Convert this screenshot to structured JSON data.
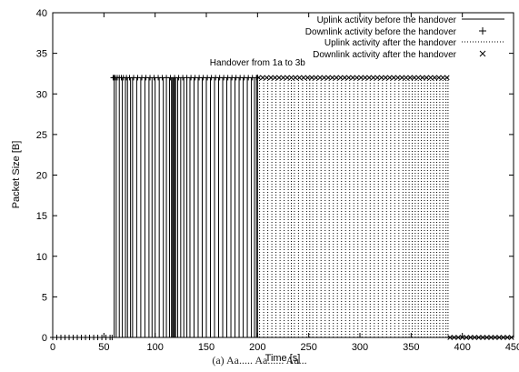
{
  "chart_data": {
    "type": "line",
    "title": "",
    "xlabel": "Time [s]",
    "ylabel": "Packet Size [B]",
    "xlim": [
      0,
      450
    ],
    "ylim": [
      0,
      40
    ],
    "x_ticks": [
      0,
      50,
      100,
      150,
      200,
      250,
      300,
      350,
      400,
      450
    ],
    "y_ticks": [
      0,
      5,
      10,
      15,
      20,
      25,
      30,
      35,
      40
    ],
    "grid": false,
    "legend_position": "top-right",
    "annotation": {
      "text": "Handover from 1a to 3b",
      "x": 200
    },
    "series": [
      {
        "name": "Uplink activity before the handover",
        "style": "solid",
        "x": [
          60,
          62,
          65,
          68,
          71,
          73,
          76,
          78,
          82,
          86,
          90,
          94,
          97,
          100,
          104,
          108,
          111,
          114,
          116,
          117,
          118,
          119,
          120,
          122,
          125,
          128,
          131,
          134,
          138,
          142,
          146,
          150,
          154,
          158,
          162,
          166,
          170,
          174,
          178,
          182,
          186,
          190,
          194,
          197,
          199
        ],
        "y": [
          32,
          32,
          32,
          32,
          32,
          32,
          32,
          32,
          32,
          32,
          32,
          32,
          32,
          32,
          32,
          32,
          32,
          32,
          32,
          32,
          32,
          32,
          32,
          32,
          32,
          32,
          32,
          32,
          32,
          32,
          32,
          32,
          32,
          32,
          32,
          32,
          32,
          32,
          32,
          32,
          32,
          32,
          32,
          32,
          32
        ]
      },
      {
        "name": "Downlink activity before the handover",
        "style": "plus",
        "x": [
          0,
          4,
          8,
          12,
          16,
          20,
          24,
          28,
          32,
          36,
          40,
          44,
          48,
          52,
          56,
          58,
          59,
          60,
          61,
          63,
          65,
          67,
          69,
          72,
          75,
          79,
          83,
          87,
          91,
          95,
          99,
          103,
          107,
          111,
          115,
          119,
          123,
          127,
          131,
          135,
          139,
          143,
          147,
          151,
          155,
          159,
          163,
          167,
          171,
          175,
          179,
          183,
          187,
          191,
          195,
          199
        ],
        "y": [
          0,
          0,
          0,
          0,
          0,
          0,
          0,
          0,
          0,
          0,
          0,
          0,
          0,
          0,
          0,
          0,
          32,
          32,
          32,
          32,
          32,
          32,
          32,
          32,
          32,
          32,
          32,
          32,
          32,
          32,
          32,
          32,
          32,
          32,
          32,
          32,
          32,
          32,
          32,
          32,
          32,
          32,
          32,
          32,
          32,
          32,
          32,
          32,
          32,
          32,
          32,
          32,
          32,
          32,
          32,
          32
        ]
      },
      {
        "name": "Uplink activity after the handover",
        "style": "dotted",
        "x": [
          202,
          206,
          210,
          214,
          218,
          222,
          226,
          230,
          233,
          236,
          240,
          244,
          248,
          251,
          254,
          258,
          262,
          266,
          270,
          274,
          278,
          282,
          286,
          290,
          294,
          298,
          302,
          306,
          310,
          314,
          318,
          322,
          326,
          330,
          334,
          338,
          342,
          345,
          348,
          351,
          354,
          357,
          360,
          363,
          366,
          369,
          372,
          375,
          378,
          381,
          384,
          386
        ],
        "y": [
          32,
          32,
          32,
          32,
          32,
          32,
          32,
          32,
          32,
          32,
          32,
          32,
          32,
          32,
          32,
          32,
          32,
          32,
          32,
          32,
          32,
          32,
          32,
          32,
          32,
          32,
          32,
          32,
          32,
          32,
          32,
          32,
          32,
          32,
          32,
          32,
          32,
          32,
          32,
          32,
          32,
          32,
          32,
          32,
          32,
          32,
          32,
          32,
          32,
          32,
          32,
          32
        ]
      },
      {
        "name": "Downlink activity after the handover",
        "style": "cross",
        "x": [
          201,
          205,
          209,
          213,
          217,
          221,
          225,
          229,
          233,
          237,
          241,
          245,
          249,
          253,
          257,
          261,
          265,
          269,
          273,
          277,
          281,
          285,
          289,
          293,
          297,
          301,
          305,
          309,
          313,
          317,
          321,
          325,
          329,
          333,
          337,
          341,
          345,
          349,
          353,
          357,
          361,
          365,
          369,
          373,
          377,
          381,
          385,
          388,
          392,
          396,
          400,
          404,
          408,
          412,
          416,
          420,
          424,
          428,
          432,
          436,
          440,
          444,
          448
        ],
        "y": [
          32,
          32,
          32,
          32,
          32,
          32,
          32,
          32,
          32,
          32,
          32,
          32,
          32,
          32,
          32,
          32,
          32,
          32,
          32,
          32,
          32,
          32,
          32,
          32,
          32,
          32,
          32,
          32,
          32,
          32,
          32,
          32,
          32,
          32,
          32,
          32,
          32,
          32,
          32,
          32,
          32,
          32,
          32,
          32,
          32,
          32,
          32,
          0,
          0,
          0,
          0,
          0,
          0,
          0,
          0,
          0,
          0,
          0,
          0,
          0,
          0,
          0,
          0
        ]
      }
    ]
  },
  "caption": "(a) Aa..... Aa...... Aa..."
}
